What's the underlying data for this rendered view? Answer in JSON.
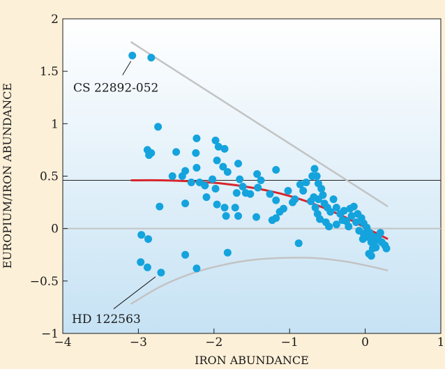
{
  "chart_data": {
    "type": "scatter",
    "title": "",
    "xlabel": "IRON ABUNDANCE",
    "ylabel": "EUROPIUM/IRON ABUNDANCE",
    "xlim": [
      -4,
      1
    ],
    "ylim": [
      -1,
      2
    ],
    "x_ticks": [
      -4,
      -3,
      -2,
      -1,
      0,
      1
    ],
    "x_tick_labels": [
      "−4",
      "−3",
      "−2",
      "−1",
      "0",
      "1"
    ],
    "y_ticks": [
      -1,
      -0.5,
      0,
      0.5,
      1,
      1.5,
      2
    ],
    "y_tick_labels": [
      "−1",
      "−0.5",
      "0",
      "0.5",
      "1",
      "1.5",
      "2"
    ],
    "grid": false,
    "colors": {
      "points": "#14a3dd",
      "trend": "#d7262b",
      "envelope": "#c3c3c3",
      "zero_line": "#c3c3c3",
      "solar_line": "#222222",
      "panel_top": "#ffffff",
      "panel_bottom": "#c6e2f4",
      "background": "#fdf0d8"
    },
    "reference_lines": [
      {
        "y": 0.46,
        "color": "#222222"
      },
      {
        "y": 0.0,
        "color": "#c3c3c3"
      }
    ],
    "upper_envelope": {
      "x": [
        -3.1,
        0.3
      ],
      "y": [
        1.78,
        0.21
      ]
    },
    "lower_envelope": {
      "x": [
        -3.1,
        -2.7,
        -2.3,
        -1.9,
        -1.5,
        -1.1,
        -0.7,
        -0.3,
        0.0,
        0.3
      ],
      "y": [
        -0.72,
        -0.55,
        -0.43,
        -0.35,
        -0.3,
        -0.28,
        -0.28,
        -0.31,
        -0.35,
        -0.4
      ]
    },
    "trend_curve": {
      "x": [
        -3.1,
        -2.7,
        -2.3,
        -1.9,
        -1.5,
        -1.1,
        -0.7,
        -0.3,
        0.0,
        0.3
      ],
      "y": [
        0.46,
        0.46,
        0.45,
        0.43,
        0.39,
        0.33,
        0.24,
        0.12,
        0.01,
        -0.1
      ]
    },
    "annotations": [
      {
        "text": "CS 22892-052",
        "x": -3.08,
        "y": 1.65
      },
      {
        "text": "HD 122563",
        "x": -2.7,
        "y": -0.42
      }
    ],
    "points": [
      [
        -3.08,
        1.65
      ],
      [
        -2.83,
        1.63
      ],
      [
        -2.74,
        0.97
      ],
      [
        -2.88,
        0.75
      ],
      [
        -2.83,
        0.72
      ],
      [
        -2.86,
        0.7
      ],
      [
        -2.5,
        0.73
      ],
      [
        -2.42,
        0.5
      ],
      [
        -2.38,
        0.55
      ],
      [
        -2.3,
        0.44
      ],
      [
        -2.55,
        0.5
      ],
      [
        -2.72,
        0.21
      ],
      [
        -2.38,
        0.24
      ],
      [
        -2.96,
        -0.06
      ],
      [
        -2.87,
        -0.1
      ],
      [
        -2.97,
        -0.32
      ],
      [
        -2.88,
        -0.37
      ],
      [
        -2.7,
        -0.42
      ],
      [
        -2.38,
        -0.25
      ],
      [
        -2.23,
        -0.38
      ],
      [
        -1.82,
        -0.23
      ],
      [
        -0.88,
        -0.14
      ],
      [
        -2.23,
        0.86
      ],
      [
        -2.24,
        0.72
      ],
      [
        -2.23,
        0.58
      ],
      [
        -2.19,
        0.44
      ],
      [
        -2.12,
        0.41
      ],
      [
        -2.1,
        0.3
      ],
      [
        -1.98,
        0.84
      ],
      [
        -1.94,
        0.78
      ],
      [
        -1.86,
        0.76
      ],
      [
        -1.96,
        0.65
      ],
      [
        -1.88,
        0.59
      ],
      [
        -1.82,
        0.54
      ],
      [
        -2.02,
        0.47
      ],
      [
        -1.98,
        0.38
      ],
      [
        -1.96,
        0.23
      ],
      [
        -1.86,
        0.2
      ],
      [
        -1.84,
        0.12
      ],
      [
        -1.68,
        0.62
      ],
      [
        -1.66,
        0.47
      ],
      [
        -1.62,
        0.4
      ],
      [
        -1.58,
        0.34
      ],
      [
        -1.52,
        0.33
      ],
      [
        -1.7,
        0.34
      ],
      [
        -1.72,
        0.2
      ],
      [
        -1.68,
        0.12
      ],
      [
        -1.43,
        0.52
      ],
      [
        -1.38,
        0.46
      ],
      [
        -1.42,
        0.39
      ],
      [
        -1.44,
        0.11
      ],
      [
        -1.18,
        0.56
      ],
      [
        -1.26,
        0.33
      ],
      [
        -1.18,
        0.27
      ],
      [
        -1.13,
        0.16
      ],
      [
        -1.08,
        0.19
      ],
      [
        -1.18,
        0.1
      ],
      [
        -1.23,
        0.08
      ],
      [
        -1.02,
        0.36
      ],
      [
        -0.96,
        0.25
      ],
      [
        -0.93,
        0.28
      ],
      [
        -0.86,
        0.42
      ],
      [
        -0.82,
        0.36
      ],
      [
        -0.78,
        0.44
      ],
      [
        -0.7,
        0.5
      ],
      [
        -0.67,
        0.57
      ],
      [
        -0.64,
        0.5
      ],
      [
        -0.62,
        0.43
      ],
      [
        -0.58,
        0.38
      ],
      [
        -0.56,
        0.32
      ],
      [
        -0.62,
        0.28
      ],
      [
        -0.68,
        0.3
      ],
      [
        -0.72,
        0.26
      ],
      [
        -0.66,
        0.2
      ],
      [
        -0.63,
        0.14
      ],
      [
        -0.6,
        0.09
      ],
      [
        -0.54,
        0.24
      ],
      [
        -0.5,
        0.2
      ],
      [
        -0.46,
        0.16
      ],
      [
        -0.52,
        0.06
      ],
      [
        -0.48,
        0.02
      ],
      [
        -0.42,
        0.28
      ],
      [
        -0.38,
        0.2
      ],
      [
        -0.33,
        0.14
      ],
      [
        -0.3,
        0.08
      ],
      [
        -0.28,
        0.17
      ],
      [
        -0.25,
        0.07
      ],
      [
        -0.2,
        0.19
      ],
      [
        -0.18,
        0.12
      ],
      [
        -0.15,
        0.21
      ],
      [
        -0.12,
        0.06
      ],
      [
        -0.1,
        0.14
      ],
      [
        -0.05,
        0.1
      ],
      [
        -0.02,
        0.05
      ],
      [
        -0.38,
        0.04
      ],
      [
        -0.22,
        0.02
      ],
      [
        -0.08,
        -0.02
      ],
      [
        0.02,
        0.01
      ],
      [
        0.06,
        -0.04
      ],
      [
        0.03,
        -0.08
      ],
      [
        -0.03,
        -0.1
      ],
      [
        0.08,
        -0.13
      ],
      [
        0.1,
        -0.19
      ],
      [
        0.14,
        -0.18
      ],
      [
        0.12,
        -0.08
      ],
      [
        0.17,
        -0.09
      ],
      [
        0.2,
        -0.04
      ],
      [
        0.22,
        -0.13
      ],
      [
        0.26,
        -0.16
      ],
      [
        0.28,
        -0.19
      ],
      [
        0.08,
        -0.26
      ],
      [
        0.05,
        -0.24
      ],
      [
        -0.02,
        -0.05
      ],
      [
        0.15,
        -0.11
      ]
    ]
  }
}
